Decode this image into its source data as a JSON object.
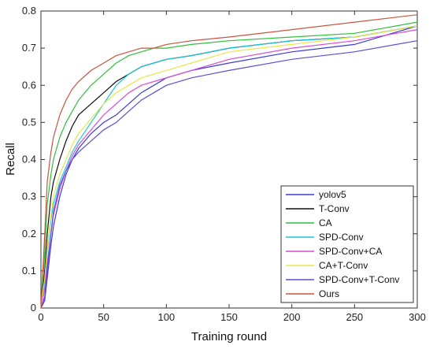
{
  "chart_data": {
    "type": "line",
    "title": "",
    "xlabel": "Training round",
    "ylabel": "Recall",
    "xlim": [
      0,
      300
    ],
    "ylim": [
      0,
      0.8
    ],
    "xticks": [
      0,
      50,
      100,
      150,
      200,
      250,
      300
    ],
    "yticks": [
      0,
      0.1,
      0.2,
      0.3,
      0.4,
      0.5,
      0.6,
      0.7,
      0.8
    ],
    "grid": false,
    "legend_position": "bottom-right",
    "series": [
      {
        "name": "yolov5",
        "color": "#3b3bd6",
        "x": [
          0,
          3,
          5,
          8,
          10,
          15,
          20,
          25,
          30,
          40,
          50,
          60,
          70,
          80,
          90,
          100,
          120,
          150,
          200,
          250,
          300
        ],
        "y": [
          0,
          0.02,
          0.08,
          0.17,
          0.22,
          0.3,
          0.36,
          0.4,
          0.43,
          0.47,
          0.5,
          0.52,
          0.55,
          0.58,
          0.6,
          0.62,
          0.64,
          0.66,
          0.69,
          0.71,
          0.76
        ]
      },
      {
        "name": "T-Conv",
        "color": "#111111",
        "x": [
          0,
          3,
          5,
          8,
          10,
          15,
          20,
          25,
          30,
          40,
          50,
          60,
          70,
          80,
          90,
          100,
          120,
          150,
          200,
          250,
          300
        ],
        "y": [
          0,
          0.1,
          0.2,
          0.3,
          0.34,
          0.4,
          0.45,
          0.49,
          0.52,
          0.55,
          0.58,
          0.61,
          0.63,
          0.65,
          0.66,
          0.67,
          0.68,
          0.7,
          0.72,
          0.73,
          0.76
        ]
      },
      {
        "name": "CA",
        "color": "#2fbf3a",
        "x": [
          0,
          3,
          5,
          8,
          10,
          15,
          20,
          25,
          30,
          40,
          50,
          60,
          70,
          80,
          90,
          100,
          120,
          150,
          200,
          250,
          300
        ],
        "y": [
          0,
          0.15,
          0.28,
          0.36,
          0.4,
          0.46,
          0.5,
          0.53,
          0.56,
          0.6,
          0.63,
          0.66,
          0.68,
          0.69,
          0.7,
          0.7,
          0.71,
          0.72,
          0.73,
          0.74,
          0.77
        ]
      },
      {
        "name": "SPD-Conv",
        "color": "#19c6dc",
        "x": [
          0,
          3,
          5,
          8,
          10,
          15,
          20,
          25,
          30,
          40,
          50,
          60,
          70,
          80,
          90,
          100,
          120,
          150,
          200,
          250,
          300
        ],
        "y": [
          0,
          0.06,
          0.15,
          0.24,
          0.28,
          0.34,
          0.38,
          0.42,
          0.45,
          0.5,
          0.55,
          0.6,
          0.63,
          0.65,
          0.66,
          0.67,
          0.68,
          0.7,
          0.72,
          0.73,
          0.76
        ]
      },
      {
        "name": "SPD-Conv+CA",
        "color": "#d94ad9",
        "x": [
          0,
          3,
          5,
          8,
          10,
          15,
          20,
          25,
          30,
          40,
          50,
          60,
          70,
          80,
          90,
          100,
          120,
          150,
          200,
          250,
          300
        ],
        "y": [
          0,
          0.05,
          0.12,
          0.2,
          0.25,
          0.32,
          0.37,
          0.41,
          0.44,
          0.48,
          0.52,
          0.55,
          0.58,
          0.6,
          0.61,
          0.62,
          0.64,
          0.67,
          0.7,
          0.72,
          0.75
        ]
      },
      {
        "name": "CA+T-Conv",
        "color": "#e8e64a",
        "x": [
          0,
          3,
          5,
          8,
          10,
          15,
          20,
          25,
          30,
          40,
          50,
          60,
          70,
          80,
          90,
          100,
          120,
          150,
          200,
          250,
          300
        ],
        "y": [
          0,
          0.08,
          0.16,
          0.25,
          0.3,
          0.36,
          0.4,
          0.44,
          0.47,
          0.51,
          0.55,
          0.58,
          0.6,
          0.62,
          0.63,
          0.64,
          0.66,
          0.69,
          0.71,
          0.73,
          0.76
        ]
      },
      {
        "name": "SPD-Conv+T-Conv",
        "color": "#5c4fd1",
        "x": [
          0,
          3,
          5,
          8,
          10,
          15,
          20,
          25,
          30,
          40,
          50,
          60,
          70,
          80,
          90,
          100,
          120,
          150,
          200,
          250,
          300
        ],
        "y": [
          0,
          0.03,
          0.1,
          0.2,
          0.26,
          0.33,
          0.37,
          0.4,
          0.42,
          0.45,
          0.48,
          0.5,
          0.53,
          0.56,
          0.58,
          0.6,
          0.62,
          0.64,
          0.67,
          0.69,
          0.72
        ]
      },
      {
        "name": "Ours",
        "color": "#c8553f",
        "x": [
          0,
          3,
          5,
          8,
          10,
          15,
          20,
          25,
          30,
          40,
          50,
          60,
          70,
          80,
          90,
          100,
          120,
          150,
          200,
          250,
          300
        ],
        "y": [
          0,
          0.2,
          0.34,
          0.42,
          0.46,
          0.52,
          0.56,
          0.59,
          0.61,
          0.64,
          0.66,
          0.68,
          0.69,
          0.7,
          0.7,
          0.71,
          0.72,
          0.73,
          0.75,
          0.77,
          0.79
        ]
      }
    ]
  }
}
